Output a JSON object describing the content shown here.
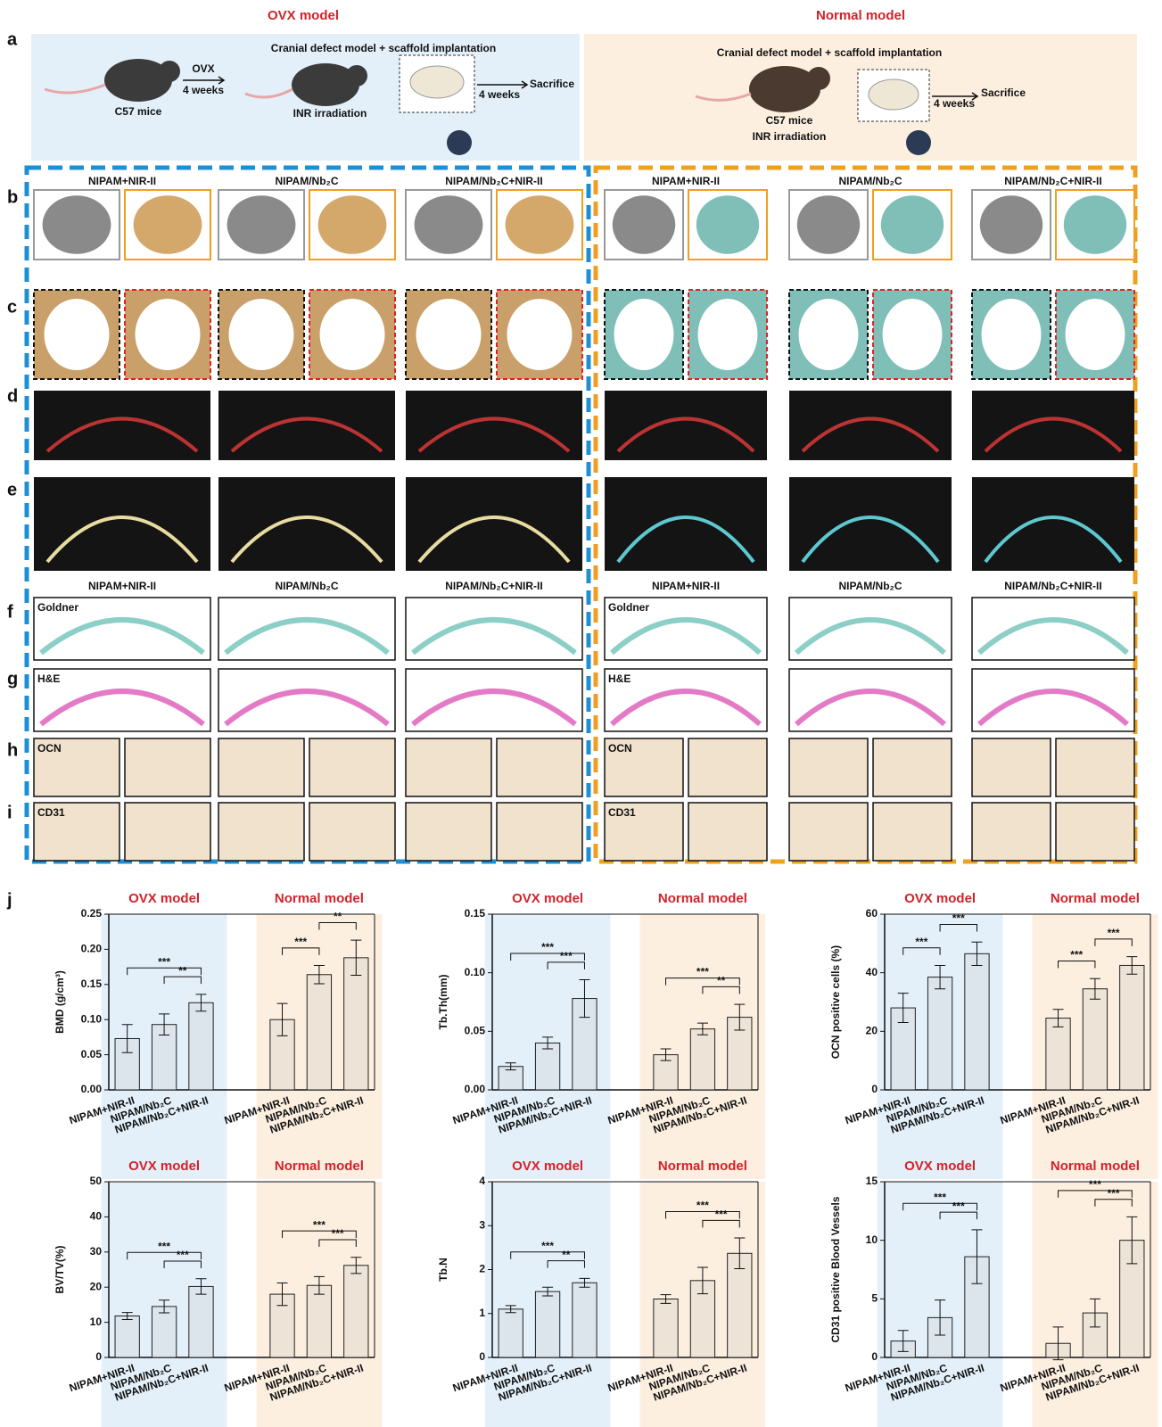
{
  "figure": {
    "ovx_title": "OVX model",
    "normal_title": "Normal model",
    "panel_labels": [
      "a",
      "b",
      "c",
      "d",
      "e",
      "f",
      "g",
      "h",
      "i",
      "j"
    ],
    "panel_a": {
      "ovx": {
        "step1": "OVX",
        "duration1": "4 weeks",
        "mouse": "C57 mice",
        "step2": "Cranial defect model + scaffold implantation",
        "irradiation": "INR irradiation",
        "duration2": "4 weeks",
        "end": "Sacrifice"
      },
      "normal": {
        "step2": "Cranial defect model + scaffold implantation",
        "mouse": "C57 mice",
        "irradiation": "INR irradiation",
        "duration": "4 weeks",
        "end": "Sacrifice"
      }
    },
    "groups": [
      "NIPAM+NIR-II",
      "NIPAM/Nb₂C",
      "NIPAM/Nb₂C+NIR-II"
    ],
    "stain_labels": [
      "Goldner",
      "H&E",
      "OCN",
      "CD31"
    ]
  },
  "chart_data": [
    {
      "type": "bar",
      "ylabel": "BMD (g/cm³)",
      "groups": [
        "OVX model",
        "Normal model"
      ],
      "categories": [
        "NIPAM+NIR-II",
        "NIPAM/Nb₂C",
        "NIPAM/Nb₂C+NIR-II",
        "NIPAM+NIR-II",
        "NIPAM/Nb₂C",
        "NIPAM/Nb₂C+NIR-II"
      ],
      "values": [
        0.073,
        0.093,
        0.124,
        0.1,
        0.164,
        0.188
      ],
      "errors": [
        0.02,
        0.015,
        0.012,
        0.023,
        0.013,
        0.025
      ],
      "ylim": [
        0,
        0.25
      ],
      "yticks": [
        {
          "value": 0,
          "label": "0.00"
        },
        0.05,
        {
          "value": 0.1,
          "label": "0.10"
        },
        0.15,
        {
          "value": 0.2,
          "label": "0.20"
        },
        0.25
      ],
      "brackets": [
        {
          "from": 0,
          "to": 2,
          "label": "***"
        },
        {
          "from": 1,
          "to": 2,
          "label": "**"
        },
        {
          "from": 3,
          "to": 4,
          "label": "***"
        },
        {
          "from": 4,
          "to": 5,
          "label": "**"
        }
      ],
      "band_colors": [
        "#e3f0fa",
        "#fcefe0"
      ],
      "bar_colors": [
        "#dce4ec",
        "#ede3d6"
      ]
    },
    {
      "type": "bar",
      "ylabel": "Tb.Th(mm)",
      "groups": [
        "OVX model",
        "Normal model"
      ],
      "categories": [
        "NIPAM+NIR-II",
        "NIPAM/Nb₂C",
        "NIPAM/Nb₂C+NIR-II",
        "NIPAM+NIR-II",
        "NIPAM/Nb₂C",
        "NIPAM/Nb₂C+NIR-II"
      ],
      "values": [
        0.02,
        0.04,
        0.078,
        0.03,
        0.052,
        0.062
      ],
      "errors": [
        0.003,
        0.005,
        0.016,
        0.005,
        0.005,
        0.011
      ],
      "ylim": [
        0,
        0.15
      ],
      "yticks": [
        {
          "value": 0,
          "label": "0.00"
        },
        0.05,
        {
          "value": 0.1,
          "label": "0.10"
        },
        0.15
      ],
      "brackets": [
        {
          "from": 0,
          "to": 2,
          "label": "***"
        },
        {
          "from": 1,
          "to": 2,
          "label": "***"
        },
        {
          "from": 3,
          "to": 5,
          "label": "***"
        },
        {
          "from": 4,
          "to": 5,
          "label": "**"
        }
      ],
      "band_colors": [
        "#e3f0fa",
        "#fcefe0"
      ],
      "bar_colors": [
        "#dce4ec",
        "#ede3d6"
      ]
    },
    {
      "type": "bar",
      "ylabel": "OCN positive cells (%)",
      "groups": [
        "OVX model",
        "Normal model"
      ],
      "categories": [
        "NIPAM+NIR-II",
        "NIPAM/Nb₂C",
        "NIPAM/Nb₂C+NIR-II",
        "NIPAM+NIR-II",
        "NIPAM/Nb₂C",
        "NIPAM/Nb₂C+NIR-II"
      ],
      "values": [
        28,
        38.5,
        46.5,
        24.5,
        34.5,
        42.5
      ],
      "errors": [
        5,
        4,
        4,
        3,
        3.5,
        3
      ],
      "ylim": [
        0,
        60
      ],
      "yticks": [
        0,
        20,
        40,
        60
      ],
      "brackets": [
        {
          "from": 0,
          "to": 1,
          "label": "***"
        },
        {
          "from": 1,
          "to": 2,
          "label": "***"
        },
        {
          "from": 3,
          "to": 4,
          "label": "***"
        },
        {
          "from": 4,
          "to": 5,
          "label": "***"
        }
      ],
      "band_colors": [
        "#e3f0fa",
        "#fcefe0"
      ],
      "bar_colors": [
        "#dce4ec",
        "#ede3d6"
      ]
    },
    {
      "type": "bar",
      "ylabel": "BV/TV(%)",
      "groups": [
        "OVX model",
        "Normal model"
      ],
      "categories": [
        "NIPAM+NIR-II",
        "NIPAM/Nb₂C",
        "NIPAM/Nb₂C+NIR-II",
        "NIPAM+NIR-II",
        "NIPAM/Nb₂C",
        "NIPAM/Nb₂C+NIR-II"
      ],
      "values": [
        11.8,
        14.5,
        20.2,
        18,
        20.5,
        26.2
      ],
      "errors": [
        1,
        1.8,
        2.2,
        3.2,
        2.5,
        2.3
      ],
      "ylim": [
        0,
        50
      ],
      "yticks": [
        0,
        10,
        20,
        30,
        40,
        50
      ],
      "brackets": [
        {
          "from": 0,
          "to": 2,
          "label": "***"
        },
        {
          "from": 1,
          "to": 2,
          "label": "***"
        },
        {
          "from": 3,
          "to": 5,
          "label": "***"
        },
        {
          "from": 4,
          "to": 5,
          "label": "***"
        }
      ],
      "band_colors": [
        "#e3f0fa",
        "#fcefe0"
      ],
      "bar_colors": [
        "#dce4ec",
        "#ede3d6"
      ]
    },
    {
      "type": "bar",
      "ylabel": "Tb.N",
      "groups": [
        "OVX model",
        "Normal model"
      ],
      "categories": [
        "NIPAM+NIR-II",
        "NIPAM/Nb₂C",
        "NIPAM/Nb₂C+NIR-II",
        "NIPAM+NIR-II",
        "NIPAM/Nb₂C",
        "NIPAM/Nb₂C+NIR-II"
      ],
      "values": [
        1.1,
        1.5,
        1.7,
        1.33,
        1.75,
        2.37
      ],
      "errors": [
        0.08,
        0.1,
        0.1,
        0.1,
        0.3,
        0.35
      ],
      "ylim": [
        0,
        4
      ],
      "yticks": [
        0,
        1,
        2,
        3,
        4
      ],
      "brackets": [
        {
          "from": 0,
          "to": 2,
          "label": "***"
        },
        {
          "from": 1,
          "to": 2,
          "label": "**"
        },
        {
          "from": 3,
          "to": 5,
          "label": "***"
        },
        {
          "from": 4,
          "to": 5,
          "label": "***"
        }
      ],
      "band_colors": [
        "#e3f0fa",
        "#fcefe0"
      ],
      "bar_colors": [
        "#dce4ec",
        "#ede3d6"
      ]
    },
    {
      "type": "bar",
      "ylabel": "CD31 positive Blood Vessels",
      "groups": [
        "OVX model",
        "Normal model"
      ],
      "categories": [
        "NIPAM+NIR-II",
        "NIPAM/Nb₂C",
        "NIPAM/Nb₂C+NIR-II",
        "NIPAM+NIR-II",
        "NIPAM/Nb₂C",
        "NIPAM/Nb₂C+NIR-II"
      ],
      "values": [
        1.4,
        3.4,
        8.6,
        1.2,
        3.8,
        10
      ],
      "errors": [
        0.9,
        1.5,
        2.3,
        1.4,
        1.2,
        2
      ],
      "ylim": [
        0,
        15
      ],
      "yticks": [
        0,
        5,
        10,
        15
      ],
      "brackets": [
        {
          "from": 0,
          "to": 2,
          "label": "***"
        },
        {
          "from": 1,
          "to": 2,
          "label": "***"
        },
        {
          "from": 3,
          "to": 5,
          "label": "***"
        },
        {
          "from": 4,
          "to": 5,
          "label": "***"
        }
      ],
      "band_colors": [
        "#e3f0fa",
        "#fcefe0"
      ],
      "bar_colors": [
        "#dce4ec",
        "#ede3d6"
      ]
    }
  ]
}
